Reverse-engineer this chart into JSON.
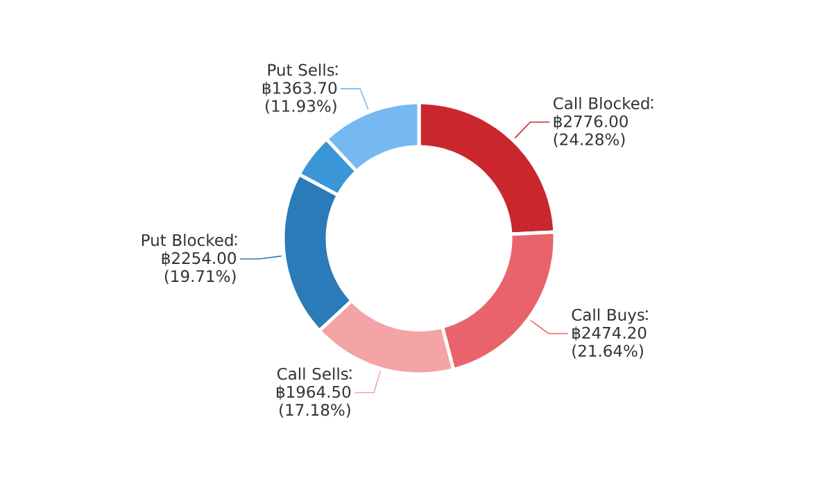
{
  "chart_data": {
    "type": "donut",
    "categories": [
      "Call Blocked",
      "Call Buys",
      "Call Sells",
      "Put Blocked",
      null,
      "Put Sells"
    ],
    "values": [
      2776.0,
      2474.2,
      1964.5,
      2254.0,
      601.4,
      1363.7
    ],
    "colors": [
      "#c9272d",
      "#e8636b",
      "#f4a3a6",
      "#2b7bb9",
      "#3a96d6",
      "#76b9f2"
    ],
    "value_labels": [
      "฿2776.00 (24.28%)",
      "฿2474.20 (21.64%)",
      "฿1964.50 (17.18%)",
      "฿2254.00 (19.71%)",
      null,
      "฿1363.70 (11.93%)"
    ]
  }
}
